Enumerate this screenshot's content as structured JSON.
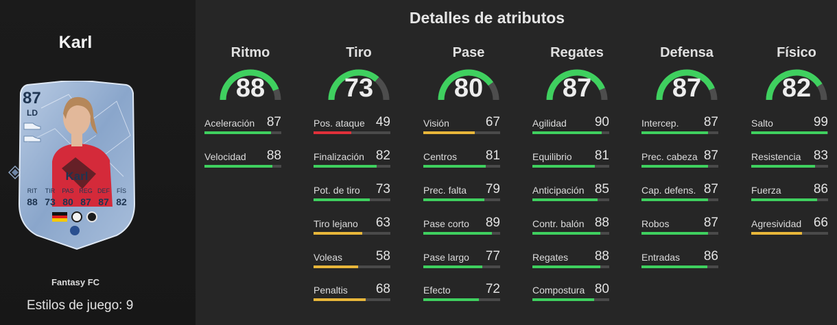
{
  "player": {
    "name": "Karl",
    "card_name": "Karl",
    "overall": "87",
    "position": "LD",
    "card_type": "Fantasy FC",
    "playstyles_label": "Estilos de juego: 9",
    "card_stats": [
      {
        "label": "RIT",
        "value": "88"
      },
      {
        "label": "TIR",
        "value": "73"
      },
      {
        "label": "PAS",
        "value": "80"
      },
      {
        "label": "REG",
        "value": "87"
      },
      {
        "label": "DEF",
        "value": "87"
      },
      {
        "label": "FÍS",
        "value": "82"
      }
    ]
  },
  "section_title": "Detalles de atributos",
  "colors": {
    "green": "#3fd05f",
    "yellow": "#e8b63a",
    "red": "#e0303a",
    "track": "#4a4a4a"
  },
  "categories": [
    {
      "name": "Ritmo",
      "value": 88,
      "stats": [
        {
          "name": "Aceleración",
          "value": 87
        },
        {
          "name": "Velocidad",
          "value": 88
        }
      ]
    },
    {
      "name": "Tiro",
      "value": 73,
      "stats": [
        {
          "name": "Pos. ataque",
          "value": 49
        },
        {
          "name": "Finalización",
          "value": 82
        },
        {
          "name": "Pot. de tiro",
          "value": 73
        },
        {
          "name": "Tiro lejano",
          "value": 63
        },
        {
          "name": "Voleas",
          "value": 58
        },
        {
          "name": "Penaltis",
          "value": 68
        }
      ]
    },
    {
      "name": "Pase",
      "value": 80,
      "stats": [
        {
          "name": "Visión",
          "value": 67
        },
        {
          "name": "Centros",
          "value": 81
        },
        {
          "name": "Prec. falta",
          "value": 79
        },
        {
          "name": "Pase corto",
          "value": 89
        },
        {
          "name": "Pase largo",
          "value": 77
        },
        {
          "name": "Efecto",
          "value": 72
        }
      ]
    },
    {
      "name": "Regates",
      "value": 87,
      "stats": [
        {
          "name": "Agilidad",
          "value": 90
        },
        {
          "name": "Equilibrio",
          "value": 81
        },
        {
          "name": "Anticipación",
          "value": 85
        },
        {
          "name": "Contr. balón",
          "value": 88
        },
        {
          "name": "Regates",
          "value": 88
        },
        {
          "name": "Compostura",
          "value": 80
        }
      ]
    },
    {
      "name": "Defensa",
      "value": 87,
      "stats": [
        {
          "name": "Intercep.",
          "value": 87
        },
        {
          "name": "Prec. cabeza",
          "value": 87
        },
        {
          "name": "Cap. defens.",
          "value": 87
        },
        {
          "name": "Robos",
          "value": 87
        },
        {
          "name": "Entradas",
          "value": 86
        }
      ]
    },
    {
      "name": "Físico",
      "value": 82,
      "stats": [
        {
          "name": "Salto",
          "value": 99
        },
        {
          "name": "Resistencia",
          "value": 83
        },
        {
          "name": "Fuerza",
          "value": 86
        },
        {
          "name": "Agresividad",
          "value": 66
        }
      ]
    }
  ]
}
